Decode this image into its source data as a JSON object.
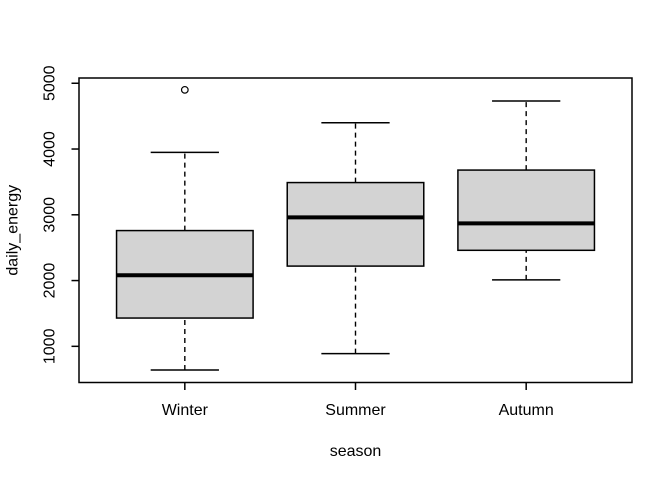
{
  "figure": {
    "background": "#ffffff"
  },
  "chart_data": {
    "type": "boxplot",
    "title": "",
    "xlabel": "season",
    "ylabel": "daily_energy",
    "categories": [
      "Winter",
      "Summer",
      "Autumn"
    ],
    "yticks": [
      1000,
      2000,
      3000,
      4000,
      5000
    ],
    "ylim": [
      450,
      5080
    ],
    "grid": false,
    "legend": "none",
    "box_fill": "#d3d3d3",
    "line_color": "#000000",
    "series": [
      {
        "name": "Winter",
        "whisker_low": 640,
        "q1": 1430,
        "median": 2080,
        "q3": 2760,
        "whisker_high": 3950,
        "outliers": [
          4900
        ]
      },
      {
        "name": "Summer",
        "whisker_low": 890,
        "q1": 2220,
        "median": 2960,
        "q3": 3490,
        "whisker_high": 4400,
        "outliers": []
      },
      {
        "name": "Autumn",
        "whisker_low": 2010,
        "q1": 2460,
        "median": 2870,
        "q3": 3680,
        "whisker_high": 4730,
        "outliers": []
      }
    ]
  }
}
